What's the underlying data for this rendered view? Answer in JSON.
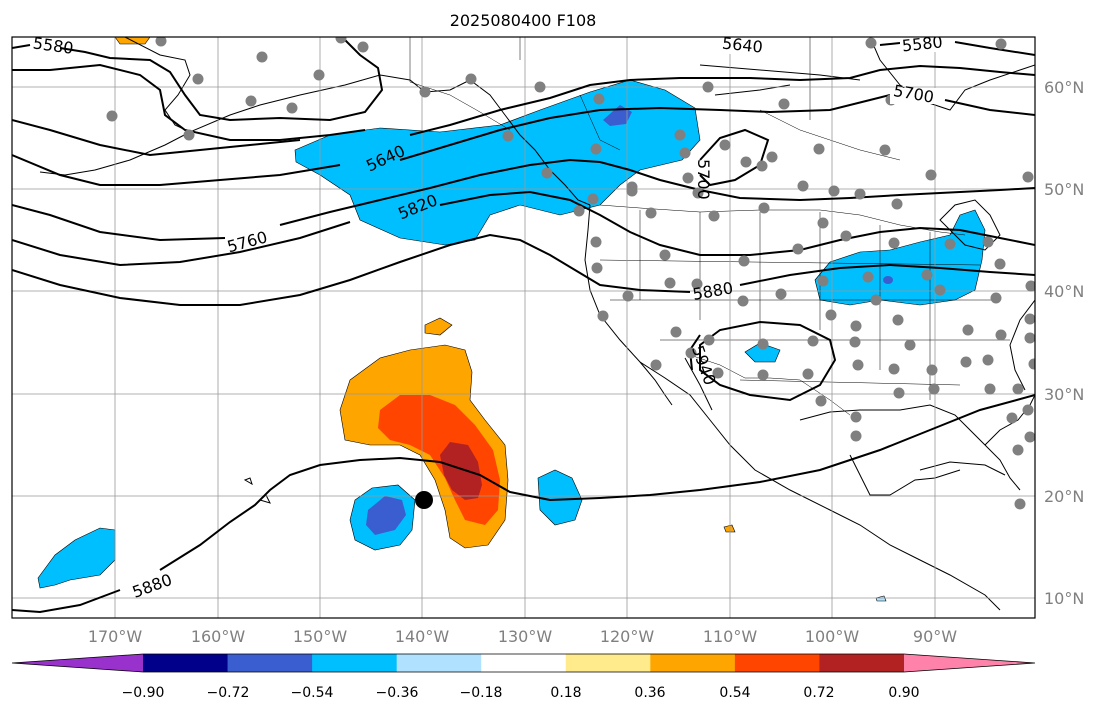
{
  "title": "2025080400 F108",
  "map": {
    "lon_labels": [
      "170°W",
      "160°W",
      "150°W",
      "140°W",
      "130°W",
      "120°W",
      "110°W",
      "100°W",
      "90°W"
    ],
    "lat_labels": [
      "60°N",
      "50°N",
      "40°N",
      "30°N",
      "20°N",
      "10°N"
    ],
    "contour_labels": [
      "5580",
      "5640",
      "5580",
      "5700",
      "5640",
      "5820",
      "5760",
      "5700",
      "5880",
      "5940",
      "5880"
    ],
    "gridline_color": "#999999",
    "coast_color": "#000000"
  },
  "colorbar": {
    "colors": [
      "#9932cc",
      "#00008b",
      "#3a5ed0",
      "#00bfff",
      "#b0e2ff",
      "#ffffff",
      "#ffea8c",
      "#ffa500",
      "#ff4500",
      "#b22222",
      "#ff82ab"
    ],
    "tick_labels": [
      "−0.90",
      "−0.72",
      "−0.54",
      "−0.36",
      "−0.18",
      "0.18",
      "0.36",
      "0.54",
      "0.72",
      "0.90"
    ]
  }
}
